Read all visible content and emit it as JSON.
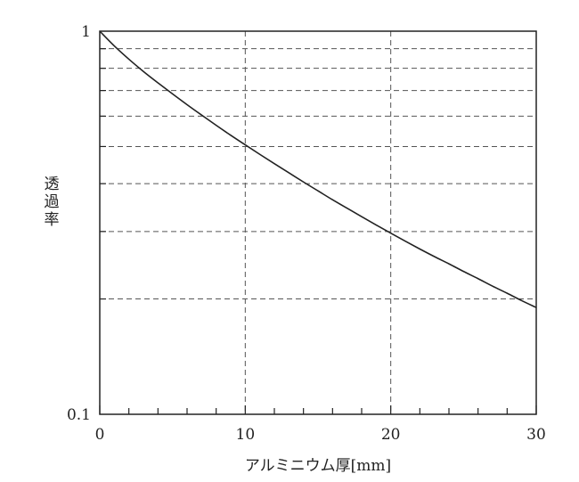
{
  "chart_data": {
    "type": "line",
    "title": "",
    "xlabel": "アルミニウム厚[mm]",
    "ylabel": "透過率",
    "x_scale": "linear",
    "y_scale": "log",
    "xlim": [
      0,
      30
    ],
    "ylim": [
      0.1,
      1
    ],
    "x_ticks": [
      0,
      10,
      20,
      30
    ],
    "x_tick_labels": [
      "0",
      "10",
      "20",
      "30"
    ],
    "x_minor_ticks": [
      2,
      4,
      6,
      8,
      12,
      14,
      16,
      18,
      22,
      24,
      26,
      28
    ],
    "y_tick_labels": [
      {
        "value": 1,
        "label": "1"
      },
      {
        "value": 0.1,
        "label": "0.1"
      }
    ],
    "y_gridlines": [
      0.9,
      0.8,
      0.7,
      0.6,
      0.5,
      0.4,
      0.3,
      0.2
    ],
    "grid": true,
    "series": [
      {
        "name": "",
        "color": "#222222",
        "x": [
          0,
          1,
          2,
          3,
          4,
          5,
          6,
          7,
          8,
          9,
          10,
          11,
          12,
          13,
          14,
          15,
          16,
          17,
          18,
          19,
          20,
          21,
          22,
          23,
          24,
          25,
          26,
          27,
          28,
          29,
          30
        ],
        "y": [
          1.0,
          0.915,
          0.845,
          0.785,
          0.733,
          0.686,
          0.643,
          0.604,
          0.568,
          0.535,
          0.505,
          0.477,
          0.451,
          0.427,
          0.404,
          0.383,
          0.363,
          0.345,
          0.328,
          0.312,
          0.297,
          0.283,
          0.27,
          0.258,
          0.247,
          0.236,
          0.226,
          0.216,
          0.207,
          0.198,
          0.19
        ]
      }
    ]
  }
}
